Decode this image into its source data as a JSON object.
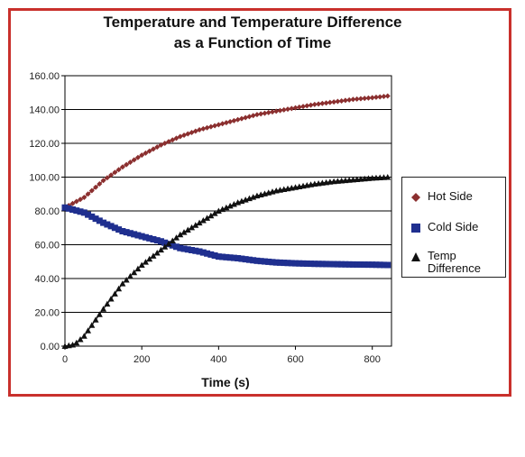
{
  "chart_data": {
    "type": "scatter",
    "title": "Temperature and Temperature Difference as a Function of Time",
    "title_lines": [
      "Temperature and Temperature Difference",
      "as a Function of Time"
    ],
    "xlabel": "Time (s)",
    "ylabel": "",
    "xlim": [
      0,
      850
    ],
    "ylim": [
      0,
      160
    ],
    "x_ticks": [
      "0",
      "200",
      "400",
      "600",
      "800"
    ],
    "y_ticks": [
      "0.00",
      "20.00",
      "40.00",
      "60.00",
      "80.00",
      "100.00",
      "120.00",
      "140.00",
      "160.00"
    ],
    "grid": "horizontal",
    "legend_position": "right",
    "series": [
      {
        "name": "Hot Side",
        "marker": "diamond",
        "color": "#8b2f2f",
        "x": [
          0,
          50,
          100,
          150,
          200,
          250,
          300,
          350,
          400,
          450,
          500,
          550,
          600,
          650,
          700,
          750,
          800,
          840
        ],
        "y": [
          82,
          88,
          98,
          106,
          113,
          119,
          124,
          128,
          131,
          134,
          137,
          139,
          141,
          143,
          144.5,
          146,
          147,
          148
        ]
      },
      {
        "name": "Cold Side",
        "marker": "square",
        "color": "#1f2f8f",
        "x": [
          0,
          50,
          100,
          150,
          200,
          250,
          300,
          350,
          400,
          450,
          500,
          550,
          600,
          650,
          700,
          750,
          800,
          840
        ],
        "y": [
          82,
          79,
          73,
          68,
          65,
          62,
          58,
          56,
          53,
          52,
          50.5,
          49.5,
          49,
          48.7,
          48.5,
          48.3,
          48.2,
          48
        ]
      },
      {
        "name": "Temp Difference",
        "marker": "triangle",
        "color": "#111111",
        "x": [
          0,
          25,
          50,
          100,
          150,
          200,
          250,
          300,
          350,
          400,
          450,
          500,
          550,
          600,
          650,
          700,
          750,
          800,
          840
        ],
        "y": [
          0,
          1,
          6,
          22,
          37,
          48,
          57,
          66,
          73,
          80,
          85,
          89,
          92,
          94,
          96,
          97.5,
          98.5,
          99.5,
          100
        ]
      }
    ]
  },
  "colors": {
    "frame_border": "#c9302c",
    "grid": "#000000"
  }
}
